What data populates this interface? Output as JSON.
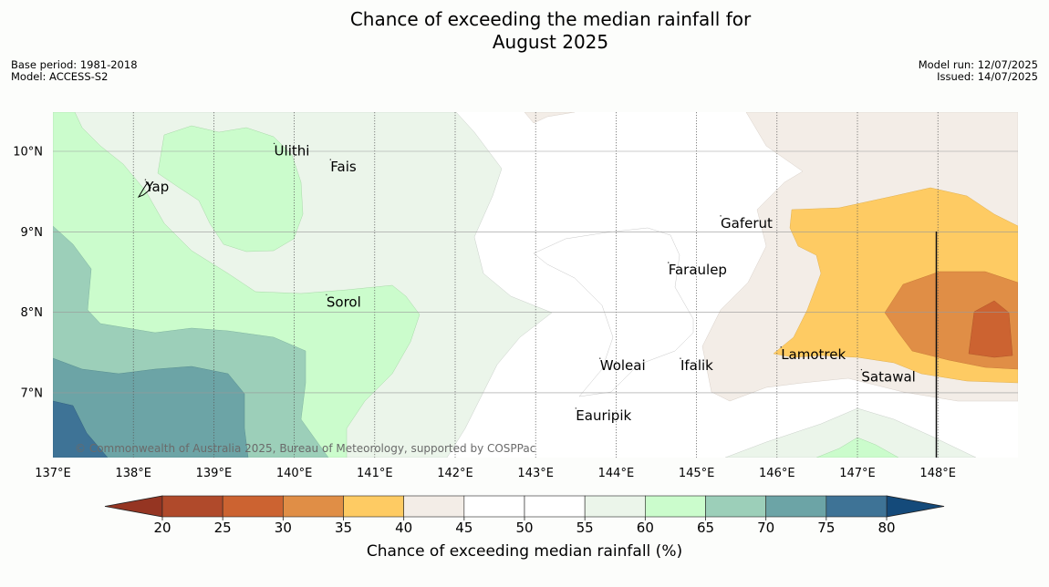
{
  "title_line1": "Chance of exceeding the median rainfall for",
  "title_line2": "August 2025",
  "meta_left": {
    "base_period": "Base period: 1981-2018",
    "model": "Model: ACCESS-S2"
  },
  "meta_right": {
    "model_run": "Model run: 12/07/2025",
    "issued": "Issued: 14/07/2025"
  },
  "copyright": "© Commonwealth of Australia 2025, Bureau of Meteorology, supported by COSPPac",
  "map_extent": {
    "lon": [
      137,
      149
    ],
    "lat": [
      6.2,
      10.5
    ]
  },
  "x_ticks": [
    "137°E",
    "138°E",
    "139°E",
    "140°E",
    "141°E",
    "142°E",
    "143°E",
    "144°E",
    "145°E",
    "146°E",
    "147°E",
    "148°E"
  ],
  "y_ticks": [
    "10°N",
    "9°N",
    "8°N",
    "7°N"
  ],
  "places": [
    {
      "name": "Ulithi",
      "lon": 139.75,
      "lat": 9.95
    },
    {
      "name": "Fais",
      "lon": 140.45,
      "lat": 9.75
    },
    {
      "name": "Yap",
      "lon": 138.15,
      "lat": 9.5
    },
    {
      "name": "Gaferut",
      "lon": 145.3,
      "lat": 9.05
    },
    {
      "name": "Faraulep",
      "lon": 144.65,
      "lat": 8.47
    },
    {
      "name": "Sorol",
      "lon": 140.4,
      "lat": 8.07
    },
    {
      "name": "Lamotrek",
      "lon": 146.05,
      "lat": 7.42
    },
    {
      "name": "Woleai",
      "lon": 143.8,
      "lat": 7.28
    },
    {
      "name": "Ifalik",
      "lon": 144.8,
      "lat": 7.28
    },
    {
      "name": "Satawal",
      "lon": 147.05,
      "lat": 7.14
    },
    {
      "name": "Eauripik",
      "lon": 143.5,
      "lat": 6.66
    }
  ],
  "colorbar": {
    "label": "Chance of exceeding median rainfall (%)",
    "ticks": [
      "20",
      "25",
      "30",
      "35",
      "40",
      "45",
      "50",
      "55",
      "60",
      "65",
      "70",
      "75",
      "80"
    ],
    "colors": [
      "#b04a2b",
      "#cc6331",
      "#e08e46",
      "#fecb63",
      "#f3ede7",
      "#ffffff",
      "#ffffff",
      "#ebf5ea",
      "#cbfccc",
      "#9ccfb9",
      "#6ca4a6",
      "#3e7396"
    ],
    "under_color": "#953522",
    "over_color": "#144a7a"
  }
}
